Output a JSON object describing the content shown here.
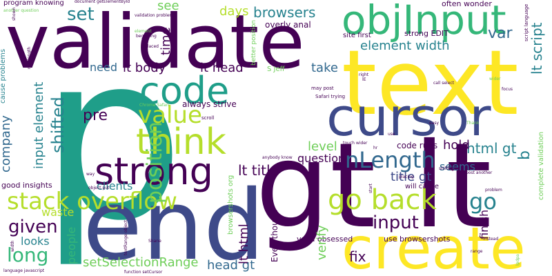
{
  "colors": {
    "background": "#ffffff",
    "dark_purple": "#440154",
    "indigo": "#3e4a89",
    "blue": "#31688e",
    "teal": "#26828e",
    "green_teal": "#1f9e89",
    "green": "#35b779",
    "light_green": "#6ece58",
    "yellow_green": "#b5de2b",
    "yellow": "#fde725"
  },
  "words": [
    "p",
    "text",
    "validate",
    "end",
    "gt lt",
    "create",
    "objInput",
    "cursor",
    "code",
    "strong",
    "think",
    "value",
    "stack overflow",
    "go back",
    "nLength",
    "input",
    "position",
    "set",
    "browsers",
    "element width",
    "lt body",
    "lt head",
    "lt script",
    "lt title",
    "title gt",
    "html gt",
    "head gt",
    "setSelectionRange",
    "given",
    "long",
    "take",
    "days",
    "see",
    "time",
    "var",
    "need",
    "pre",
    "company",
    "input element",
    "shifted",
    "level",
    "question",
    "hold",
    "clients",
    "waste",
    "looks",
    "people",
    "lt html",
    "fix",
    "verify",
    "finish",
    "seems",
    "code runs",
    "always strive",
    "good insights",
    "program knowing",
    "strong EDIT",
    "often wonder",
    "overly anal",
    "site first",
    "Even though",
    "valid obsessed",
    "use browsershots",
    "will cause",
    "complete validation",
    "go",
    "b",
    "S Jeff",
    "may post",
    "Safari trying",
    "Chrome Safari",
    "scroll",
    "anybody know",
    "another question",
    "document getElementById",
    "validation problems",
    "cause problems",
    "better position",
    "beginning",
    "placed",
    "element",
    "object put",
    "function setCursor",
    "textRange object",
    "language javascript",
    "Shane",
    "instead",
    "problem",
    "post another",
    "placing",
    "shifting",
    "touch wider",
    "easy",
    "Thank",
    "focus",
    "wider",
    "call select",
    "right",
    "IE",
    "maxlength",
    "length",
    "width",
    "shown",
    "way",
    "start",
    "use",
    "hr",
    "browsershots org",
    "script language",
    "range",
    "lpdpa"
  ]
}
